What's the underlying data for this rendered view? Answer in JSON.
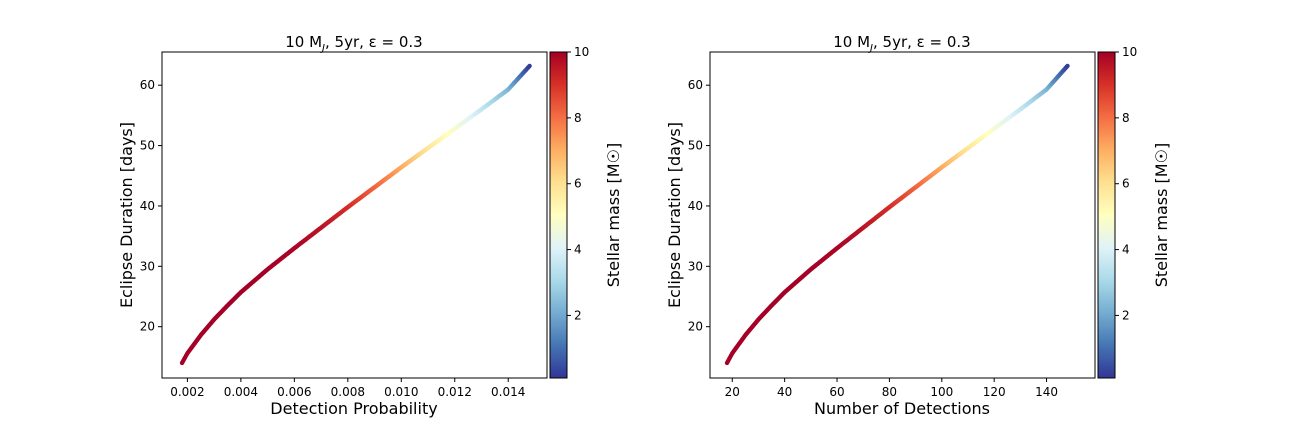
{
  "figure": {
    "colorbar_ticks": [
      "2",
      "4",
      "6",
      "8",
      "10"
    ]
  },
  "chart_data": [
    {
      "type": "scatter",
      "title_main": "10 M",
      "title_sub": "J",
      "title_rest": ", 5yr, ε = 0.3",
      "xlabel": "Detection Probability",
      "ylabel": "Eclipse Duration [days]",
      "colorbar_label": "Stellar mass [M☉]",
      "xlim": [
        0.00105,
        0.01545
      ],
      "ylim": [
        11.5,
        65.5
      ],
      "xticks": [
        0.002,
        0.004,
        0.006,
        0.008,
        0.01,
        0.012,
        0.014
      ],
      "xtick_labels": [
        "0.002",
        "0.004",
        "0.006",
        "0.008",
        "0.010",
        "0.012",
        "0.014"
      ],
      "yticks": [
        20,
        30,
        40,
        50,
        60
      ],
      "ytick_labels": [
        "20",
        "30",
        "40",
        "50",
        "60"
      ],
      "color_range": [
        0.1,
        10
      ],
      "curve": {
        "x": [
          0.0018,
          0.002,
          0.0025,
          0.003,
          0.0035,
          0.004,
          0.005,
          0.006,
          0.007,
          0.008,
          0.009,
          0.01,
          0.011,
          0.012,
          0.013,
          0.014,
          0.0148
        ],
        "y": [
          14.0,
          15.6,
          18.6,
          21.2,
          23.5,
          25.7,
          29.5,
          33.0,
          36.4,
          39.8,
          43.1,
          46.4,
          49.6,
          52.8,
          56.0,
          59.3,
          63.2
        ],
        "mass": [
          10,
          10,
          10,
          10,
          10,
          10,
          10,
          9.9,
          9.6,
          9.1,
          8.2,
          7.1,
          5.9,
          4.8,
          3.6,
          2.3,
          0.2
        ]
      }
    },
    {
      "type": "scatter",
      "title_main": "10 M",
      "title_sub": "J",
      "title_rest": ", 5yr, ε = 0.3",
      "xlabel": "Number of Detections",
      "ylabel": "Eclipse Duration [days]",
      "colorbar_label": "Stellar mass [M☉]",
      "xlim": [
        11.5,
        158.5
      ],
      "ylim": [
        11.5,
        65.5
      ],
      "xticks": [
        20,
        40,
        60,
        80,
        100,
        120,
        140
      ],
      "xtick_labels": [
        "20",
        "40",
        "60",
        "80",
        "100",
        "120",
        "140"
      ],
      "yticks": [
        20,
        30,
        40,
        50,
        60
      ],
      "ytick_labels": [
        "20",
        "30",
        "40",
        "50",
        "60"
      ],
      "color_range": [
        0.1,
        10
      ],
      "curve": {
        "x": [
          18,
          20,
          25,
          30,
          35,
          40,
          50,
          60,
          70,
          80,
          90,
          100,
          110,
          120,
          130,
          140,
          148
        ],
        "y": [
          14.0,
          15.6,
          18.6,
          21.2,
          23.5,
          25.7,
          29.5,
          33.0,
          36.4,
          39.8,
          43.1,
          46.4,
          49.6,
          52.8,
          56.0,
          59.3,
          63.2
        ],
        "mass": [
          10,
          10,
          10,
          10,
          10,
          10,
          10,
          9.9,
          9.6,
          9.1,
          8.2,
          7.1,
          5.9,
          4.8,
          3.6,
          2.3,
          0.2
        ]
      }
    }
  ]
}
